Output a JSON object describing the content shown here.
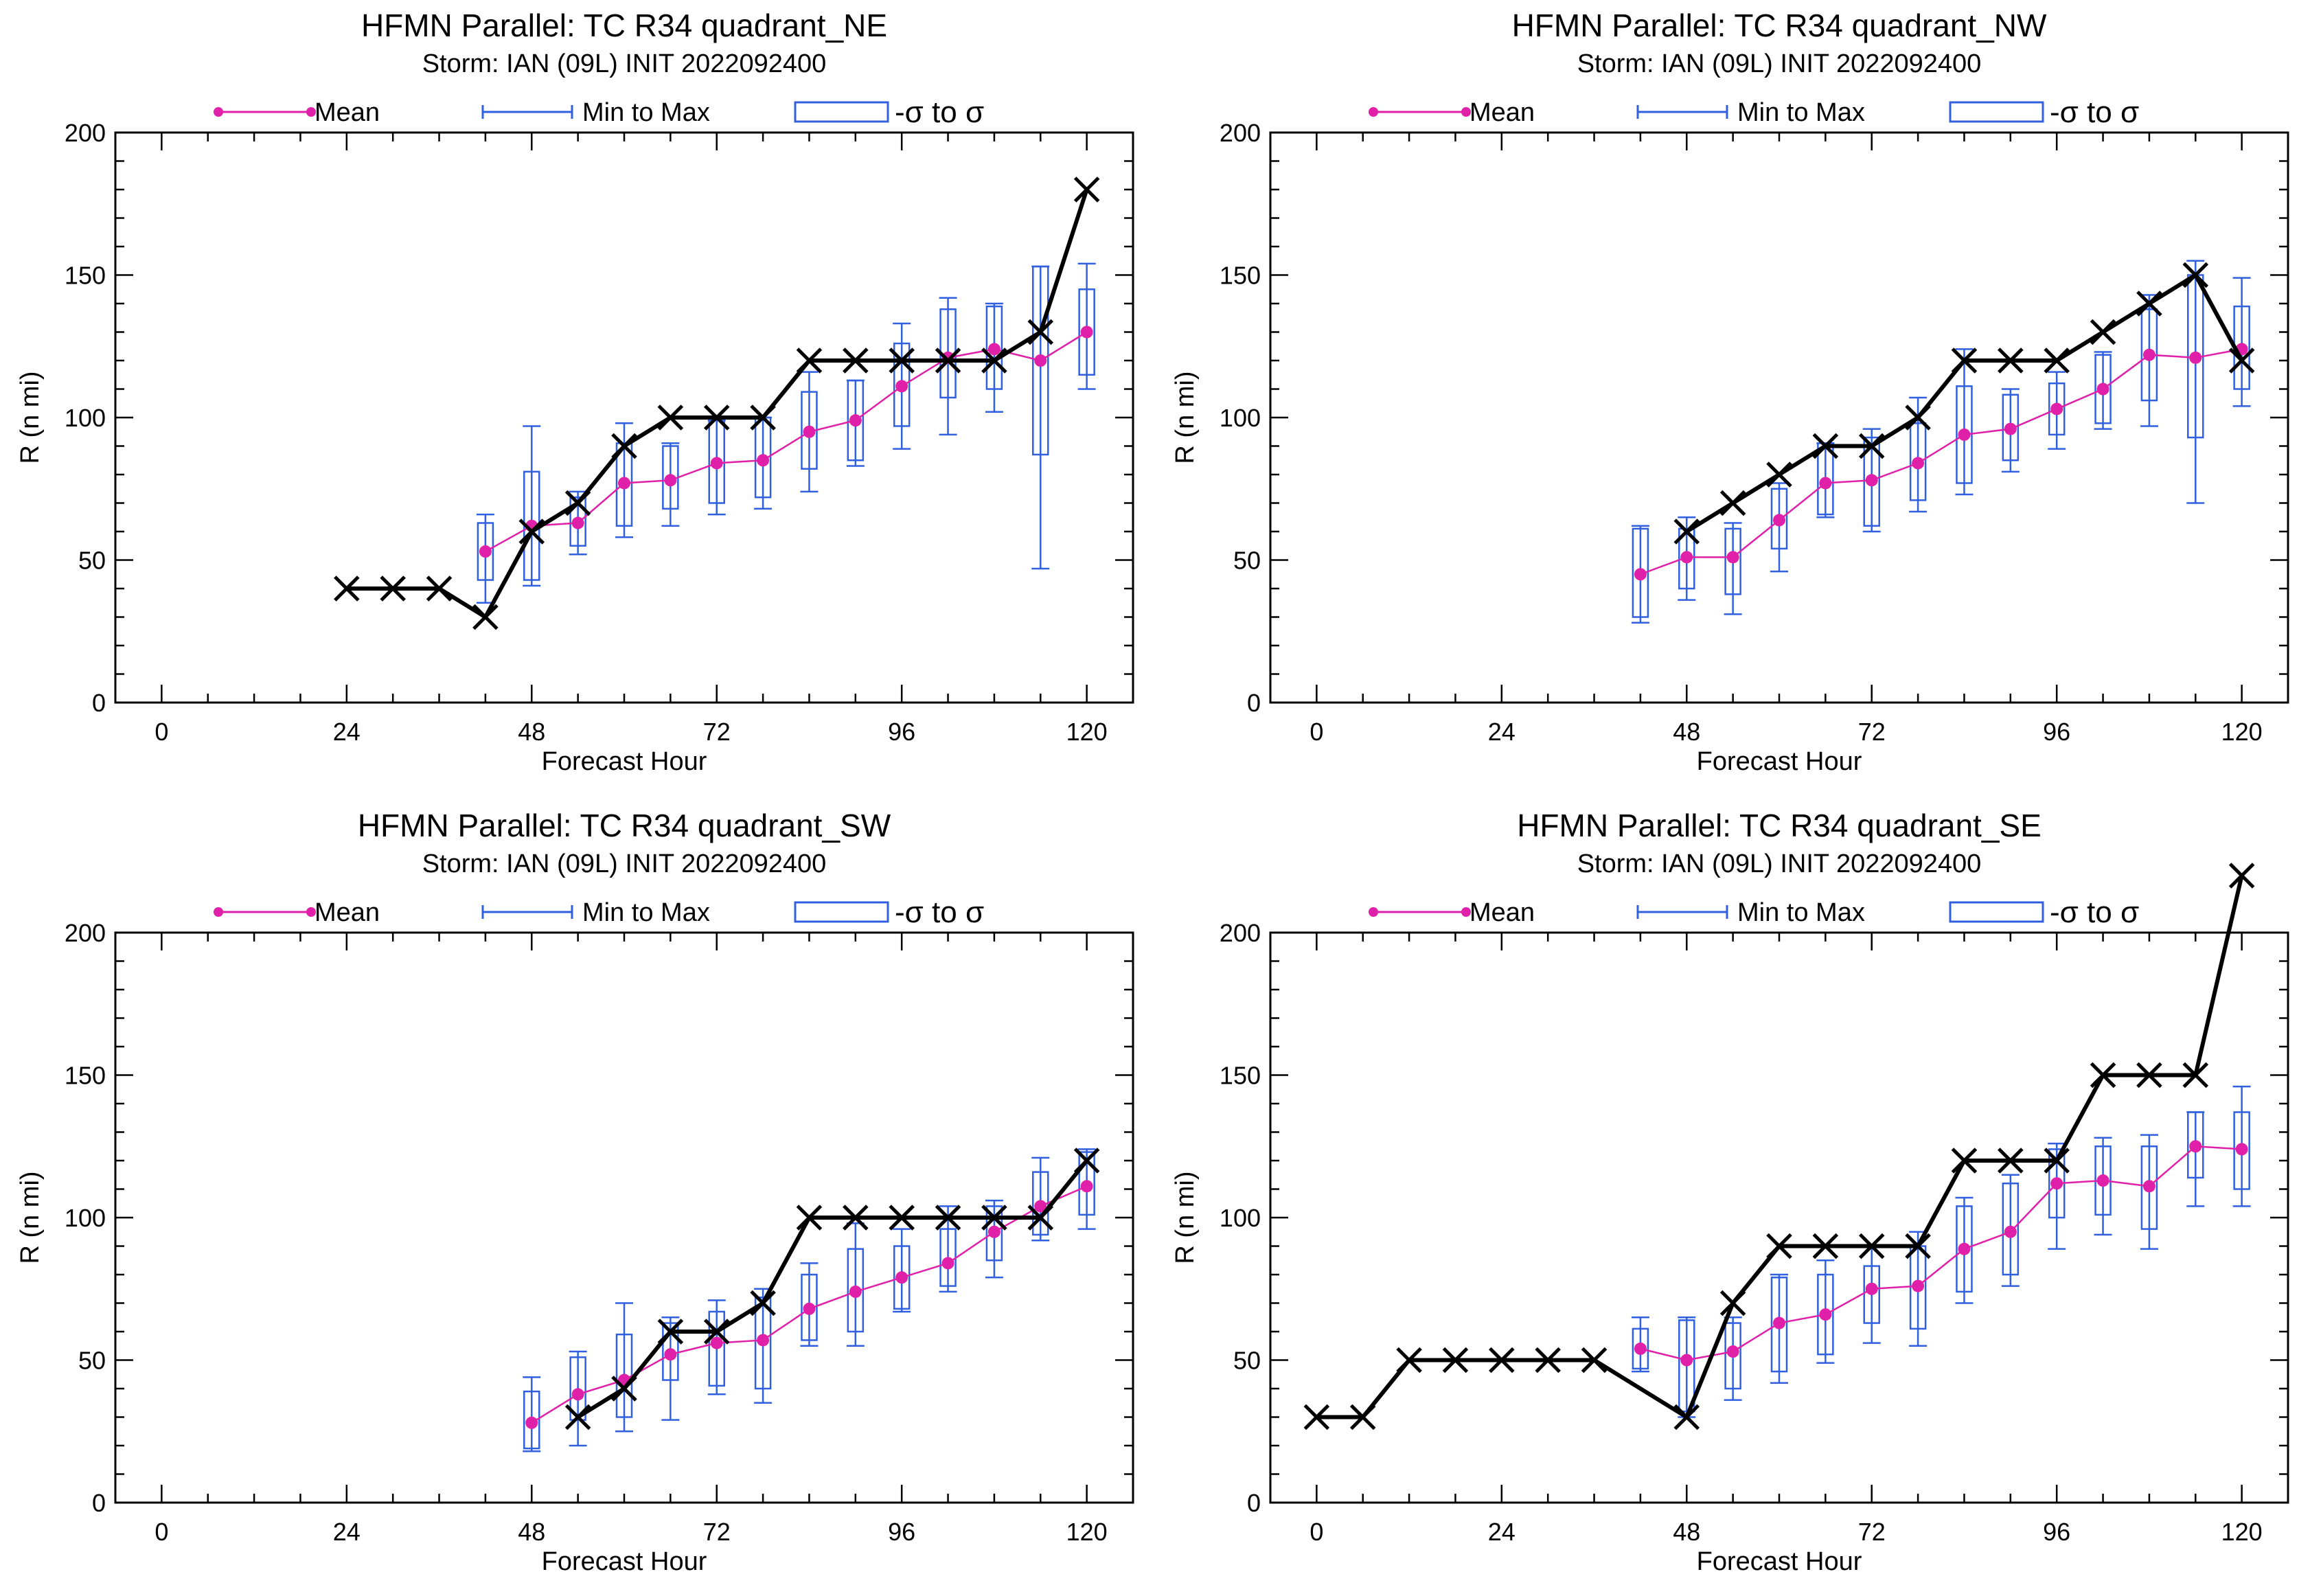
{
  "figure": {
    "legend": {
      "mean": "Mean",
      "minmax": "Min to Max",
      "sigma": "-σ to σ"
    },
    "colors": {
      "mean": "#e020a8",
      "minmax": "#3060e0",
      "sigma": "#3060e0",
      "best_track": "#000000"
    }
  },
  "chart_data": [
    {
      "type": "box",
      "title": "HFMN Parallel: TC  R34 quadrant_NE",
      "subtitle": "Storm: IAN (09L) INIT 2022092400",
      "xlabel": "Forecast Hour",
      "ylabel": "R (n mi)",
      "xlim": [
        -6,
        126
      ],
      "ylim": [
        0,
        200
      ],
      "xticks": [
        0,
        24,
        48,
        72,
        96,
        120
      ],
      "yticks": [
        0,
        50,
        100,
        150,
        200
      ],
      "best_track": {
        "x": [
          24,
          30,
          36,
          42,
          48,
          54,
          60,
          66,
          72,
          78,
          84,
          90,
          96,
          102,
          108,
          114,
          120
        ],
        "y": [
          40,
          40,
          40,
          30,
          60,
          70,
          90,
          100,
          100,
          100,
          120,
          120,
          120,
          120,
          120,
          130,
          180
        ]
      },
      "ensemble": {
        "x": [
          42,
          48,
          54,
          60,
          66,
          72,
          78,
          84,
          90,
          96,
          102,
          108,
          114,
          120
        ],
        "mean": [
          53,
          62,
          63,
          77,
          78,
          84,
          85,
          95,
          99,
          111,
          121,
          124,
          120,
          130
        ],
        "min": [
          35,
          41,
          52,
          58,
          62,
          66,
          68,
          74,
          83,
          89,
          94,
          102,
          47,
          110
        ],
        "max": [
          66,
          97,
          74,
          98,
          91,
          99,
          100,
          116,
          113,
          133,
          142,
          140,
          153,
          154
        ],
        "sigma_lo": [
          43,
          43,
          55,
          62,
          68,
          70,
          72,
          82,
          85,
          97,
          107,
          110,
          87,
          115
        ],
        "sigma_hi": [
          63,
          81,
          72,
          91,
          90,
          100,
          100,
          109,
          113,
          126,
          138,
          139,
          153,
          145
        ]
      }
    },
    {
      "type": "box",
      "title": "HFMN Parallel: TC  R34 quadrant_NW",
      "subtitle": "Storm: IAN (09L) INIT 2022092400",
      "xlabel": "Forecast Hour",
      "ylabel": "R (n mi)",
      "xlim": [
        -6,
        126
      ],
      "ylim": [
        0,
        200
      ],
      "xticks": [
        0,
        24,
        48,
        72,
        96,
        120
      ],
      "yticks": [
        0,
        50,
        100,
        150,
        200
      ],
      "best_track": {
        "x": [
          48,
          54,
          60,
          66,
          72,
          78,
          84,
          90,
          96,
          102,
          108,
          114,
          120
        ],
        "y": [
          60,
          70,
          80,
          90,
          90,
          100,
          120,
          120,
          120,
          130,
          140,
          150,
          120
        ]
      },
      "ensemble": {
        "x": [
          42,
          48,
          54,
          60,
          66,
          72,
          78,
          84,
          90,
          96,
          102,
          108,
          114,
          120
        ],
        "mean": [
          45,
          51,
          51,
          64,
          77,
          78,
          84,
          94,
          96,
          103,
          110,
          122,
          121,
          124
        ],
        "min": [
          28,
          36,
          31,
          46,
          65,
          60,
          67,
          73,
          81,
          89,
          96,
          97,
          70,
          104
        ],
        "max": [
          62,
          65,
          63,
          77,
          91,
          96,
          107,
          124,
          110,
          116,
          123,
          143,
          155,
          149
        ],
        "sigma_lo": [
          30,
          40,
          38,
          54,
          66,
          62,
          71,
          77,
          85,
          94,
          98,
          106,
          93,
          110
        ],
        "sigma_hi": [
          61,
          61,
          61,
          75,
          91,
          93,
          98,
          111,
          108,
          112,
          122,
          138,
          150,
          139
        ]
      }
    },
    {
      "type": "box",
      "title": "HFMN Parallel: TC  R34 quadrant_SW",
      "subtitle": "Storm: IAN (09L) INIT 2022092400",
      "xlabel": "Forecast Hour",
      "ylabel": "R (n mi)",
      "xlim": [
        -6,
        126
      ],
      "ylim": [
        0,
        200
      ],
      "xticks": [
        0,
        24,
        48,
        72,
        96,
        120
      ],
      "yticks": [
        0,
        50,
        100,
        150,
        200
      ],
      "best_track": {
        "x": [
          54,
          60,
          66,
          72,
          78,
          84,
          90,
          96,
          102,
          108,
          114,
          120
        ],
        "y": [
          30,
          40,
          60,
          60,
          70,
          100,
          100,
          100,
          100,
          100,
          100,
          120
        ]
      },
      "ensemble": {
        "x": [
          48,
          54,
          60,
          66,
          72,
          78,
          84,
          90,
          96,
          102,
          108,
          114,
          120
        ],
        "mean": [
          28,
          38,
          43,
          52,
          56,
          57,
          68,
          74,
          79,
          84,
          95,
          104,
          111
        ],
        "min": [
          18,
          20,
          25,
          29,
          38,
          35,
          55,
          55,
          67,
          74,
          79,
          92,
          96
        ],
        "max": [
          44,
          53,
          70,
          65,
          71,
          75,
          84,
          98,
          96,
          104,
          106,
          121,
          124
        ],
        "sigma_lo": [
          19,
          29,
          30,
          43,
          41,
          40,
          57,
          60,
          68,
          76,
          85,
          94,
          101
        ],
        "sigma_hi": [
          39,
          51,
          59,
          63,
          67,
          72,
          80,
          89,
          90,
          96,
          104,
          116,
          123
        ]
      }
    },
    {
      "type": "box",
      "title": "HFMN Parallel: TC  R34 quadrant_SE",
      "subtitle": "Storm: IAN (09L) INIT 2022092400",
      "xlabel": "Forecast Hour",
      "ylabel": "R (n mi)",
      "xlim": [
        -6,
        126
      ],
      "ylim": [
        0,
        200
      ],
      "xticks": [
        0,
        24,
        48,
        72,
        96,
        120
      ],
      "yticks": [
        0,
        50,
        100,
        150,
        200
      ],
      "best_track": {
        "x": [
          0,
          6,
          12,
          18,
          24,
          30,
          36,
          48,
          54,
          60,
          66,
          72,
          78,
          84,
          90,
          96,
          102,
          108,
          114,
          120
        ],
        "y": [
          30,
          30,
          50,
          50,
          50,
          50,
          50,
          30,
          70,
          90,
          90,
          90,
          90,
          120,
          120,
          120,
          150,
          150,
          150,
          220
        ]
      },
      "ensemble": {
        "x": [
          42,
          48,
          54,
          60,
          66,
          72,
          78,
          84,
          90,
          96,
          102,
          108,
          114,
          120
        ],
        "mean": [
          54,
          50,
          53,
          63,
          66,
          75,
          76,
          89,
          95,
          112,
          113,
          111,
          125,
          124
        ],
        "min": [
          46,
          30,
          36,
          42,
          49,
          56,
          55,
          70,
          76,
          89,
          94,
          89,
          104,
          104
        ],
        "max": [
          65,
          65,
          65,
          80,
          85,
          90,
          95,
          107,
          115,
          126,
          128,
          129,
          137,
          146
        ],
        "sigma_lo": [
          47,
          32,
          40,
          46,
          52,
          63,
          61,
          74,
          80,
          100,
          101,
          96,
          114,
          110
        ],
        "sigma_hi": [
          61,
          64,
          63,
          79,
          80,
          83,
          90,
          104,
          112,
          124,
          125,
          125,
          137,
          137
        ]
      }
    }
  ]
}
